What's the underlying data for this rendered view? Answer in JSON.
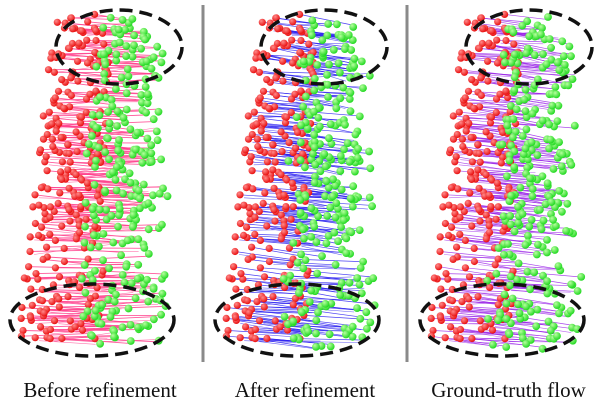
{
  "panels": [
    {
      "caption": "Before refinement",
      "flow_color": "#ff3d8b"
    },
    {
      "caption": "After refinement",
      "flow_color": "#2a1ff0"
    },
    {
      "caption": "Ground-truth flow",
      "flow_color": "#9b27e8"
    }
  ],
  "colors": {
    "source_points": "#e80d0d",
    "target_points": "#1fd81f",
    "divider": "#8a8a8a",
    "highlight_ellipse": "#111111"
  }
}
